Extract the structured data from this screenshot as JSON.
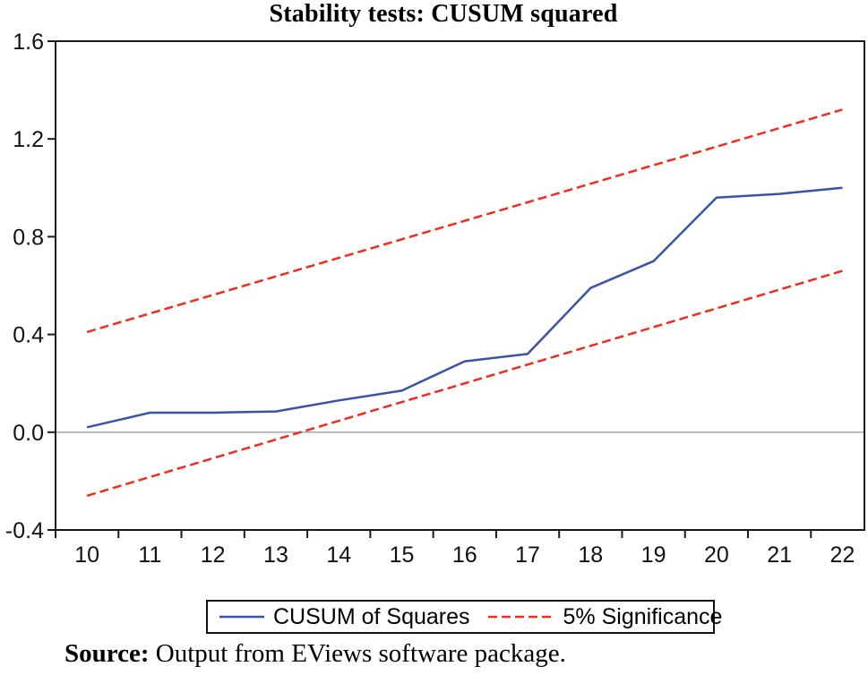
{
  "chart_data": {
    "type": "line",
    "title": "Stability tests: CUSUM squared",
    "xlabel": "",
    "ylabel": "",
    "xlim": [
      9.5,
      22.35
    ],
    "ylim": [
      -0.4,
      1.6
    ],
    "xticks": [
      10,
      11,
      12,
      13,
      14,
      15,
      16,
      17,
      18,
      19,
      20,
      21,
      22
    ],
    "yticks": [
      -0.4,
      0.0,
      0.4,
      0.8,
      1.2,
      1.6
    ],
    "grid": false,
    "zero_line": true,
    "legend_position": "bottom",
    "axis_color": "#1a1a1a",
    "zero_line_color": "#8a8a8a",
    "series": [
      {
        "name": "CUSUM of Squares",
        "color": "#3a53a5",
        "style": "solid",
        "x": [
          10,
          11,
          12,
          13,
          14,
          15,
          16,
          17,
          18,
          19,
          20,
          21,
          22
        ],
        "y": [
          0.02,
          0.08,
          0.08,
          0.085,
          0.13,
          0.17,
          0.29,
          0.32,
          0.59,
          0.7,
          0.96,
          0.975,
          1.0
        ]
      },
      {
        "name": "5% Significance (upper band)",
        "color": "#ee2d1f",
        "style": "dashed",
        "x": [
          10,
          22
        ],
        "y": [
          0.41,
          1.32
        ]
      },
      {
        "name": "5% Significance (lower band)",
        "color": "#ee2d1f",
        "style": "dashed",
        "x": [
          10,
          22
        ],
        "y": [
          -0.26,
          0.66
        ]
      }
    ],
    "legend": [
      {
        "label": "CUSUM of Squares",
        "color": "#3a53a5",
        "style": "solid"
      },
      {
        "label": "5% Significance",
        "color": "#ee2d1f",
        "style": "dashed"
      }
    ]
  },
  "source": {
    "label": "Source:",
    "text": " Output from EViews software package."
  }
}
